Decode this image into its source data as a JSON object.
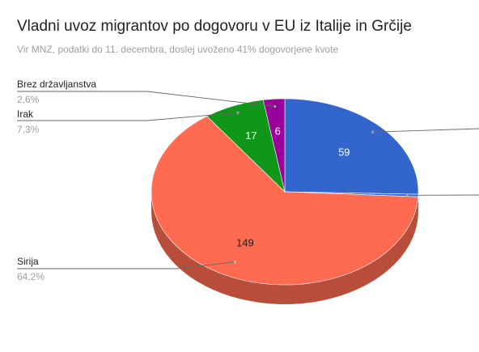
{
  "title": "Vladni uvoz migrantov po dogovoru v EU iz Italije in Grčije",
  "subtitle": "Vir MNZ, podatki do 11. decembra, doslej uvoženo 41% dogovorjene kvote",
  "chart_data": {
    "type": "pie",
    "three_d": true,
    "title": "Vladni uvoz migrantov po dogovoru v EU iz Italije in Grčije",
    "subtitle": "Vir MNZ, podatki do 11. decembra, doslej uvoženo 41% dogovorjene kvote",
    "slices": [
      {
        "label": "",
        "value": 59,
        "percent": "",
        "color": "#3366cc",
        "side": "colour"
      },
      {
        "label": "",
        "value": 1,
        "percent": "",
        "color": "#3366cc",
        "side": "colour"
      },
      {
        "label": "Sirija",
        "value": 149,
        "percent": "64,2%",
        "color": "#ff6b51",
        "side": "left"
      },
      {
        "label": "Irak",
        "value": 17,
        "percent": "7,3%",
        "color": "#109618",
        "side": "left"
      },
      {
        "label": "Brez državljanstva",
        "value": 6,
        "percent": "2,6%",
        "color": "#990099",
        "side": "left"
      }
    ],
    "value_labels": [
      "59",
      "149",
      "17",
      "6"
    ],
    "legend": "labels outside with leader lines"
  }
}
